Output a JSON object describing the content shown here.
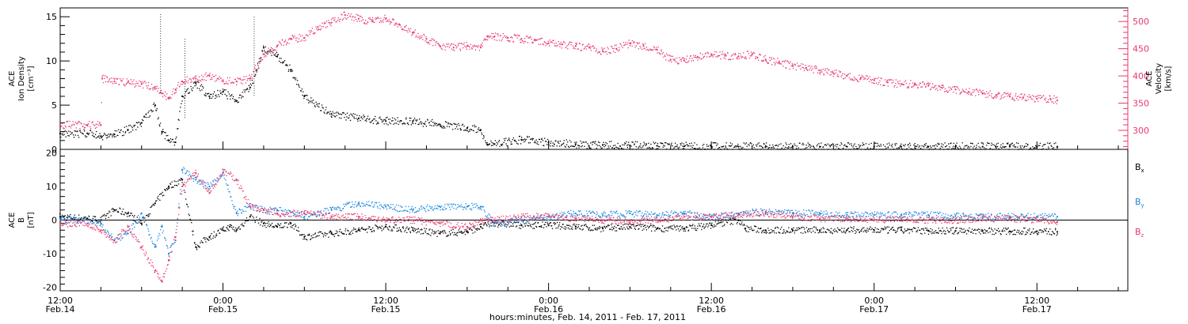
{
  "colors": {
    "black": "#000000",
    "pink": "#e8386a",
    "blue": "#1a86e0"
  },
  "x_axis": {
    "caption": "hours:minutes, Feb. 14, 2011 - Feb. 17, 2011",
    "ticks": [
      {
        "t": 0,
        "time": "12:00",
        "date": "Feb.14"
      },
      {
        "t": 12,
        "time": "0:00",
        "date": "Feb.15"
      },
      {
        "t": 24,
        "time": "12:00",
        "date": "Feb.15"
      },
      {
        "t": 36,
        "time": "0:00",
        "date": "Feb.16"
      },
      {
        "t": 48,
        "time": "12:00",
        "date": "Feb.16"
      },
      {
        "t": 60,
        "time": "0:00",
        "date": "Feb.17"
      },
      {
        "t": 72,
        "time": "12:00",
        "date": "Feb.17"
      }
    ]
  },
  "chart_data": [
    {
      "type": "scatter",
      "panel": "top",
      "x_unit": "hours since 12:00 Feb.14",
      "xlim": [
        0,
        78.7
      ],
      "left_axis": {
        "label_lines": [
          "ACE",
          "Ion Density",
          "[cm⁻³]"
        ],
        "ylim": [
          0,
          16
        ],
        "ticks": [
          0,
          5,
          10,
          15
        ]
      },
      "right_axis": {
        "label_lines": [
          "ACE",
          "Velocity",
          "[km/s]"
        ],
        "ylim": [
          265,
          525
        ],
        "ticks": [
          300,
          350,
          400,
          450,
          500
        ]
      },
      "series": [
        {
          "color": "#000000",
          "axis": "left",
          "x": [
            0,
            2,
            3,
            4,
            5,
            6,
            7,
            7.5,
            8,
            8.5,
            9,
            10,
            11,
            12,
            13,
            14,
            14.5,
            15,
            16,
            17,
            18,
            20,
            22,
            24,
            26,
            28,
            30,
            31,
            31.5,
            32,
            34,
            36,
            38,
            40,
            42,
            44,
            46,
            48,
            50,
            52,
            54,
            56,
            58,
            60,
            62,
            64,
            66,
            68,
            70,
            72,
            73.5
          ],
          "y": [
            1.8,
            1.8,
            1.5,
            1.7,
            2.2,
            3.0,
            5.0,
            2.0,
            1.0,
            0.8,
            6.0,
            7.5,
            6.0,
            6.5,
            5.5,
            7.0,
            9.0,
            11.5,
            10.5,
            9.0,
            6.0,
            4.0,
            3.5,
            3.2,
            3.2,
            2.8,
            2.4,
            2.2,
            0.5,
            0.6,
            1.1,
            0.8,
            0.6,
            0.5,
            0.45,
            0.4,
            0.35,
            0.3,
            0.3,
            0.3,
            0.3,
            0.3,
            0.3,
            0.3,
            0.3,
            0.3,
            0.3,
            0.3,
            0.3,
            0.3,
            0.3
          ]
        },
        {
          "color": "#e8386a",
          "axis": "right",
          "x": [
            0,
            2,
            3,
            3.1,
            4,
            5,
            6,
            7,
            7.5,
            8,
            8.5,
            9,
            10,
            11,
            12,
            13,
            14,
            15,
            16,
            17,
            18,
            19,
            20,
            21,
            22,
            23,
            24,
            25,
            26,
            27,
            28,
            29,
            30,
            31,
            31.5,
            32,
            33,
            34,
            35,
            36,
            37,
            38,
            39,
            40,
            41,
            42,
            43,
            44,
            45,
            46,
            47,
            48,
            49,
            50,
            51,
            52,
            53,
            54,
            55,
            56,
            57,
            58,
            59,
            60,
            61,
            62,
            63,
            64,
            65,
            66,
            67,
            68,
            69,
            70,
            71,
            72,
            73,
            73.5
          ],
          "y": [
            310,
            310,
            310,
            395,
            390,
            388,
            385,
            380,
            368,
            360,
            375,
            390,
            395,
            400,
            392,
            390,
            395,
            440,
            455,
            468,
            470,
            490,
            498,
            512,
            505,
            500,
            505,
            495,
            480,
            468,
            455,
            452,
            455,
            452,
            472,
            472,
            470,
            468,
            465,
            460,
            458,
            455,
            452,
            445,
            450,
            460,
            455,
            448,
            430,
            428,
            435,
            440,
            437,
            436,
            440,
            430,
            425,
            418,
            415,
            410,
            405,
            400,
            395,
            392,
            388,
            385,
            385,
            382,
            378,
            375,
            370,
            368,
            365,
            362,
            360,
            358,
            358,
            355
          ]
        }
      ]
    },
    {
      "type": "scatter",
      "panel": "bottom",
      "x_unit": "hours since 12:00 Feb.14",
      "xlim": [
        0,
        78.7
      ],
      "left_axis": {
        "label_lines": [
          "ACE",
          "B",
          "[nT]"
        ],
        "ylim": [
          -21,
          21
        ],
        "ticks": [
          -20,
          -10,
          0,
          10,
          20
        ]
      },
      "zero_line": true,
      "series": [
        {
          "name": "Bx",
          "color": "#000000",
          "x": [
            0,
            2,
            3,
            4,
            5,
            6,
            7,
            8,
            9,
            10,
            11,
            12,
            12.5,
            13,
            14,
            15,
            16,
            17,
            18,
            20,
            22,
            24,
            26,
            28,
            30,
            31,
            32,
            34,
            36,
            38,
            40,
            42,
            44,
            46,
            48,
            50,
            50.5,
            52,
            54,
            56,
            58,
            60,
            62,
            64,
            66,
            68,
            70,
            72,
            73.5
          ],
          "y": [
            1,
            0.5,
            0,
            3,
            2,
            -1,
            5,
            10,
            12,
            -8,
            -5,
            -3,
            -2,
            -3,
            1,
            -1,
            -2,
            -1,
            -5,
            -4,
            -3,
            -2,
            -3,
            -4,
            -3.5,
            -2,
            -1,
            -1.5,
            -1.5,
            -2,
            -2.5,
            -2,
            -2.5,
            -2.5,
            -1.5,
            0,
            -2.5,
            -3,
            -3,
            -3,
            -3,
            -3,
            -3,
            -3.2,
            -3.2,
            -3.2,
            -3.3,
            -3.3,
            -3.5
          ]
        },
        {
          "name": "By",
          "color": "#1a86e0",
          "x": [
            0,
            2,
            3,
            4,
            5,
            6,
            7,
            7.5,
            8,
            8.5,
            9,
            10,
            11,
            12,
            13,
            14,
            15,
            16,
            18,
            20,
            22,
            24,
            26,
            28,
            30,
            31,
            32,
            34,
            36,
            38,
            40,
            42,
            44,
            46,
            48,
            50,
            52,
            54,
            56,
            58,
            60,
            62,
            64,
            66,
            68,
            70,
            72,
            73.5
          ],
          "y": [
            0,
            0,
            -1,
            -6,
            -4,
            2,
            -8,
            -2,
            -10,
            -6,
            15,
            12,
            10,
            14,
            2,
            4,
            3,
            3,
            1,
            3,
            5,
            4,
            3,
            4,
            4,
            4,
            -1,
            0,
            1,
            2,
            1.5,
            2,
            1.5,
            2,
            1,
            2,
            2.5,
            2,
            2,
            1.5,
            1.5,
            1.5,
            1.5,
            1.2,
            1,
            1,
            1,
            1
          ]
        },
        {
          "name": "Bz",
          "color": "#e8386a",
          "x": [
            0,
            2,
            3,
            4,
            5,
            6,
            7,
            7.5,
            8,
            8.5,
            9,
            10,
            11,
            12,
            13,
            14,
            15,
            16,
            18,
            20,
            22,
            24,
            26,
            28,
            30,
            31,
            32,
            34,
            36,
            38,
            40,
            42,
            44,
            46,
            48,
            50,
            52,
            54,
            56,
            58,
            60,
            62,
            64,
            66,
            68,
            70,
            72,
            73.5
          ],
          "y": [
            -1,
            -1,
            -3,
            -6,
            -2,
            -8,
            -15,
            -18,
            -12,
            -5,
            10,
            14,
            8,
            15,
            12,
            4,
            3,
            2,
            2,
            1,
            1,
            0,
            0,
            -1,
            -2,
            0,
            0,
            1,
            1,
            0.5,
            0,
            -0.5,
            0,
            1,
            1,
            1.5,
            2,
            1,
            0.5,
            0.5,
            0,
            0.5,
            0,
            0,
            0.5,
            0.5,
            0,
            -0.5
          ]
        }
      ],
      "legend": [
        {
          "base": "B",
          "sub": "x",
          "color": "#000000"
        },
        {
          "base": "B",
          "sub": "y",
          "color": "#1a86e0"
        },
        {
          "base": "B",
          "sub": "z",
          "color": "#e8386a"
        }
      ]
    }
  ]
}
